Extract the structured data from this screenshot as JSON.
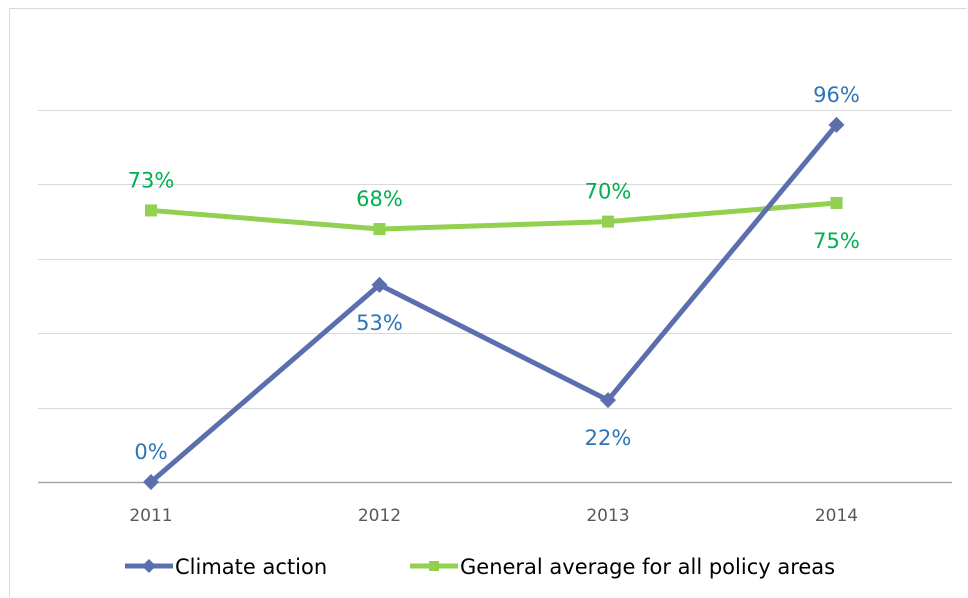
{
  "chart_data": {
    "type": "line",
    "title": "",
    "xlabel": "",
    "ylabel": "",
    "categories": [
      "2011",
      "2012",
      "2013",
      "2014"
    ],
    "ylim": [
      0,
      1.0
    ],
    "y_gridlines": [
      0.2,
      0.4,
      0.6,
      0.8,
      1.0
    ],
    "grid": true,
    "legend_position": "bottom",
    "series": [
      {
        "name": "Climate action",
        "values": [
          0,
          0.53,
          0.22,
          0.96
        ],
        "labels": [
          "0%",
          "53%",
          "22%",
          "96%"
        ],
        "label_side": [
          "above",
          "below",
          "below",
          "above"
        ],
        "color": "#5b6fae",
        "label_color": "#2e75b6",
        "marker": "diamond"
      },
      {
        "name": "General average for all policy areas",
        "values": [
          0.73,
          0.68,
          0.7,
          0.75
        ],
        "labels": [
          "73%",
          "68%",
          "70%",
          "75%"
        ],
        "label_side": [
          "above",
          "above",
          "above",
          "below"
        ],
        "color": "#92d050",
        "label_color": "#00b050",
        "marker": "square"
      }
    ]
  }
}
